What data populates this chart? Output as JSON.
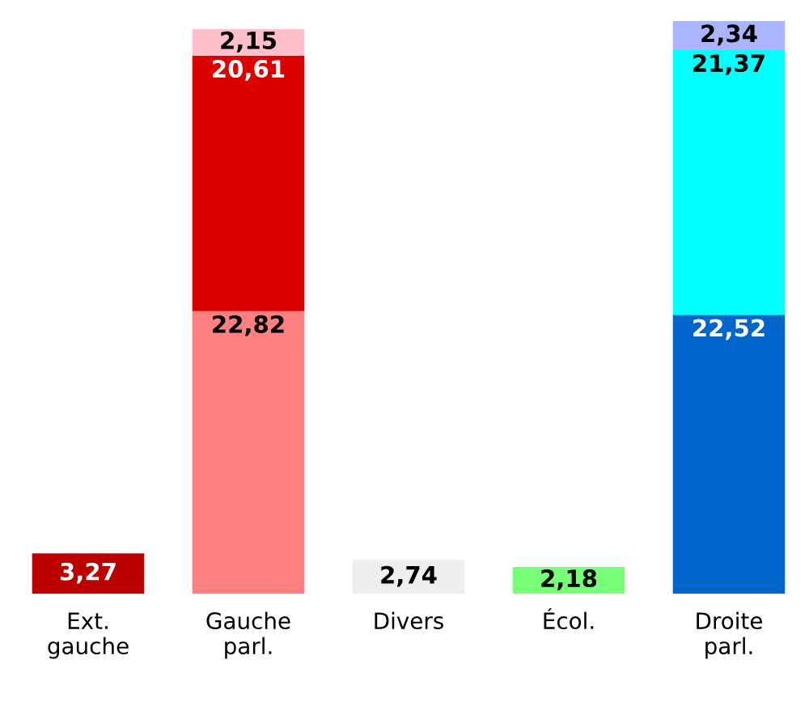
{
  "chart_data": {
    "type": "bar",
    "stacked": true,
    "categories": [
      "Ext.\ngauche",
      "Gauche\nparl.",
      "Divers",
      "Écol.",
      "Droite\nparl."
    ],
    "series": [
      {
        "colors": [
          "#bb0000",
          "#ff8080",
          "#eeeeee",
          "#77ff77",
          "#0066cc"
        ],
        "values": [
          3.27,
          22.82,
          2.74,
          2.18,
          22.52
        ],
        "value_labels": [
          "3,27",
          "22,82",
          "2,74",
          "2,18",
          "22,52"
        ]
      },
      {
        "colors": [
          null,
          "#dd0000",
          null,
          null,
          "#00ffff"
        ],
        "values": [
          null,
          20.61,
          null,
          null,
          21.37
        ],
        "value_labels": [
          null,
          "20,61",
          null,
          null,
          "21,37"
        ]
      },
      {
        "colors": [
          null,
          "#ffc0cb",
          null,
          null,
          "#aab4ff"
        ],
        "values": [
          null,
          2.15,
          null,
          null,
          2.34
        ],
        "value_labels": [
          null,
          "2,15",
          null,
          null,
          "2,34"
        ]
      }
    ],
    "grid": false,
    "legend": false,
    "tick_labels": "x"
  }
}
